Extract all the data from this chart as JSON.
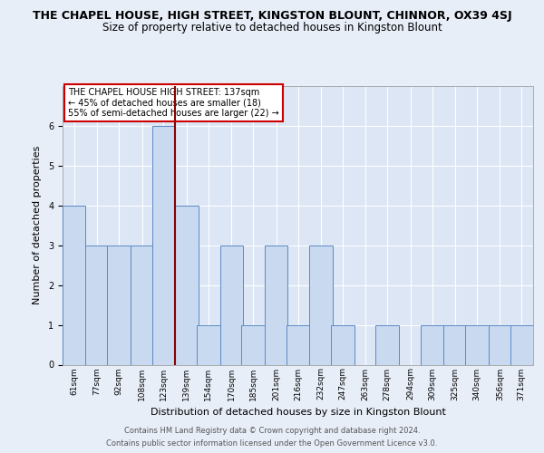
{
  "title": "THE CHAPEL HOUSE, HIGH STREET, KINGSTON BLOUNT, CHINNOR, OX39 4SJ",
  "subtitle": "Size of property relative to detached houses in Kingston Blount",
  "xlabel": "Distribution of detached houses by size in Kingston Blount",
  "ylabel": "Number of detached properties",
  "bins": [
    61,
    77,
    92,
    108,
    123,
    139,
    154,
    170,
    185,
    201,
    216,
    232,
    247,
    263,
    278,
    294,
    309,
    325,
    340,
    356,
    371
  ],
  "counts": [
    4,
    3,
    3,
    3,
    6,
    4,
    1,
    3,
    1,
    3,
    1,
    3,
    1,
    0,
    1,
    0,
    1,
    1,
    1,
    1,
    1
  ],
  "bin_width": 16,
  "marker_value": 139,
  "marker_label": "THE CHAPEL HOUSE HIGH STREET: 137sqm",
  "annotation_line1": "← 45% of detached houses are smaller (18)",
  "annotation_line2": "55% of semi-detached houses are larger (22) →",
  "bar_color": "#c9d9f0",
  "bar_edge_color": "#5b8ac5",
  "marker_color": "#8b0000",
  "ylim_max": 7,
  "bg_color": "#e8eef8",
  "plot_bg_color": "#dce6f5",
  "footer_line1": "Contains HM Land Registry data © Crown copyright and database right 2024.",
  "footer_line2": "Contains public sector information licensed under the Open Government Licence v3.0.",
  "title_fontsize": 9,
  "subtitle_fontsize": 8.5,
  "xlabel_fontsize": 8,
  "ylabel_fontsize": 8,
  "tick_fontsize": 6.5,
  "annotation_fontsize": 7,
  "footer_fontsize": 6,
  "annotation_box_bg": "#ffffff",
  "annotation_box_edge": "#cc0000",
  "grid_color": "#ffffff",
  "spine_color": "#aaaaaa"
}
